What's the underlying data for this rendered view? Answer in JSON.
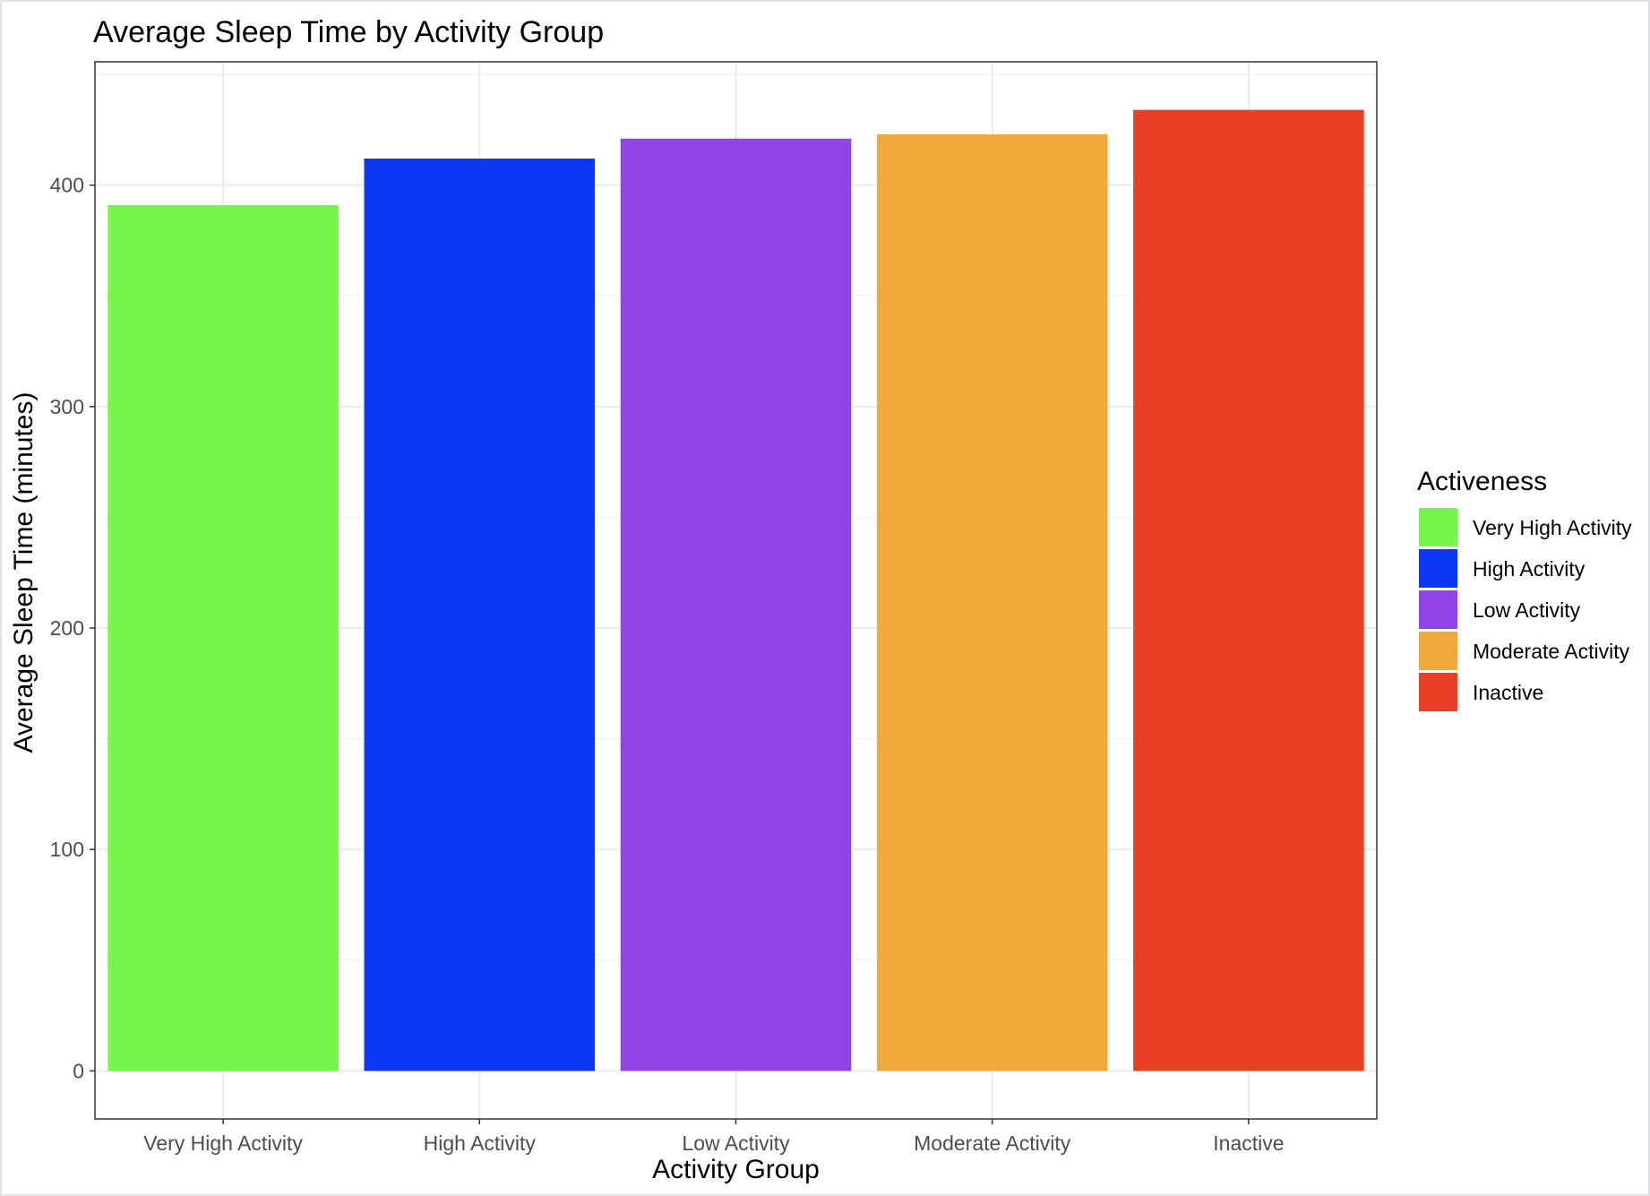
{
  "chart_data": {
    "type": "bar",
    "title": "Average Sleep Time by Activity Group",
    "xlabel": "Activity Group",
    "ylabel": "Average Sleep Time (minutes)",
    "categories": [
      "Very High Activity",
      "High Activity",
      "Low Activity",
      "Moderate Activity",
      "Inactive"
    ],
    "values": [
      391,
      412,
      421,
      423,
      434
    ],
    "colors": [
      "#76f54b",
      "#0b37f5",
      "#9043e6",
      "#f2a93c",
      "#e84027"
    ],
    "ylim": [
      -21.7,
      455.7
    ],
    "yticks": [
      0,
      100,
      200,
      300,
      400
    ],
    "grid": true,
    "legend": {
      "title": "Activeness",
      "placement": "right",
      "entries": [
        "Very High Activity",
        "High Activity",
        "Low Activity",
        "Moderate Activity",
        "Inactive"
      ]
    }
  }
}
